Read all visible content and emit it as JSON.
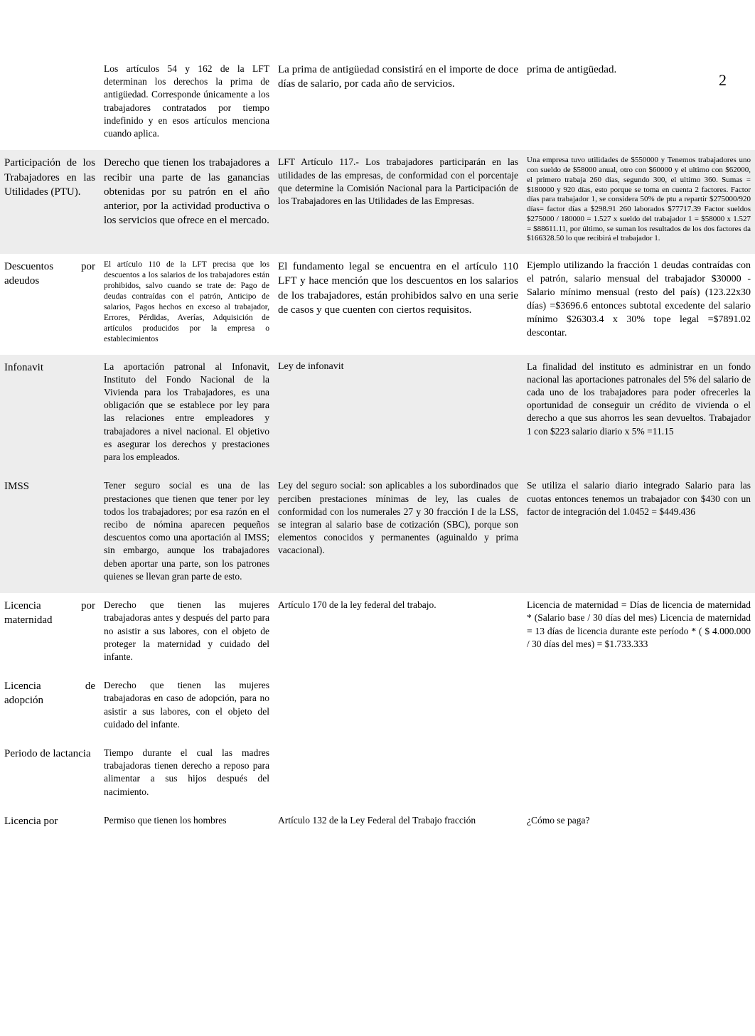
{
  "page_number": "2",
  "rows": {
    "top": {
      "c0": "",
      "c1": "Los artículos 54 y 162 de la LFT determinan los derechos la prima de antigüedad. Corresponde únicamente a los trabajadores contratados por tiempo indefinido y en esos artículos menciona cuando aplica.",
      "c2": "La prima de antigüedad consistirá en el importe de doce días de salario, por cada año de servicios.",
      "c3": "prima de antigüedad."
    },
    "participacion": {
      "c0": "Participación de los Trabajadores en las Utilidades (PTU).",
      "c1": "Derecho que tienen los trabajadores a recibir una parte de las ganancias obtenidas por su patrón en el año anterior, por la actividad productiva o los servicios que ofrece en el mercado.",
      "c2": "LFT Artículo 117.- Los trabajadores participarán en las utilidades de las empresas, de conformidad con el porcentaje que determine la Comisión Nacional para la Participación de los Trabajadores en las Utilidades de las Empresas.",
      "c3": "Una empresa tuvo utilidades de $550000 y Tenemos trabajadores uno con sueldo de $58000 anual, otro con $60000 y el ultimo con $62000, el primero trabaja 260 días, segundo 300, el ultimo 360. Sumas = $180000 y 920 días, esto porque se toma en cuenta 2 factores.\nFactor días para trabajador 1, se considera 50% de ptu a repartir $275000/920 días= factor días a $298.91 260 laborados $77717.39\nFactor sueldos $275000 / 180000 = 1.527 x sueldo del trabajador 1 = $58000 x 1.527 = $88611.11, por último, se suman los resultados de los dos factores da $166328.50 lo que recibirá el trabajador 1."
    },
    "descuentos": {
      "c0": "Descuentos por adeudos",
      "c1": "El artículo 110 de la LFT precisa que los descuentos a los salarios de los trabajadores están prohibidos, salvo cuando se trate de:\nPago de deudas contraídas con el patrón, Anticipo de salarios, Pagos hechos en exceso al trabajador, Errores, Pérdidas, Averías, Adquisición de artículos producidos por la empresa o establecimientos",
      "c2": "El fundamento legal se encuentra en el artículo 110 LFT y hace mención que los descuentos en los salarios de los trabajadores, están prohibidos salvo en una serie de casos y que cuenten con ciertos requisitos.",
      "c3": "Ejemplo utilizando la fracción 1 deudas contraídas con el patrón, salario mensual del trabajador $30000 - Salario mínimo mensual (resto del país) (123.22x30 días) =$3696.6 entonces subtotal excedente del salario mínimo $26303.4 x 30% tope legal =$7891.02 descontar."
    },
    "infonavit": {
      "c0": "Infonavit",
      "c1": "La aportación patronal al Infonavit, Instituto del Fondo Nacional de la Vivienda para los Trabajadores, es una obligación que se establece por ley para las relaciones entre empleadores y trabajadores a nivel nacional. El objetivo es asegurar los derechos y prestaciones para los empleados.",
      "c2": "Ley de infonavit",
      "c3": "La finalidad del instituto es administrar en un fondo nacional las aportaciones patronales del 5% del salario de cada uno de los trabajadores para poder ofrecerles la oportunidad de conseguir un crédito de vivienda o el derecho a que sus ahorros les sean devueltos.\nTrabajador 1 con $223 salario diario x 5% =11.15"
    },
    "imss": {
      "c0": "IMSS",
      "c1": "Tener seguro social es una de las prestaciones que tienen que tener por ley todos los trabajadores; por esa razón en el recibo de nómina aparecen pequeños descuentos como una aportación al IMSS; sin embargo, aunque los trabajadores deben aportar una parte, son los patrones quienes se llevan gran parte de esto.",
      "c2": "Ley del seguro social:\nson aplicables a los subordinados que perciben prestaciones mínimas de ley, las cuales de conformidad con los numerales 27 y 30 fracción I de la LSS, se integran al salario base de cotización (SBC), porque son elementos conocidos y permanentes (aguinaldo y prima vacacional).",
      "c3": "Se utiliza el salario diario integrado\nSalario para las cuotas entonces tenemos un trabajador con $430 con un factor de integración del 1.0452 = $449.436"
    },
    "licmat": {
      "c0": "Licencia por maternidad",
      "c1": "Derecho que tienen las mujeres trabajadoras antes y después del parto para no asistir a sus labores, con el objeto de proteger la maternidad y cuidado del infante.",
      "c2": "Artículo 170 de la ley federal del trabajo.",
      "c3": "Licencia de maternidad = Días de licencia de maternidad * (Salario base / 30 días del mes) Licencia de maternidad = 13 días de licencia durante este período * ( $ 4.000.000 / 30 días del mes) = $1.733.333"
    },
    "licadop": {
      "c0": "Licencia de adopción",
      "c1": "Derecho que tienen las mujeres trabajadoras en caso de adopción, para no asistir a sus labores, con el objeto del cuidado del infante.",
      "c2": "",
      "c3": ""
    },
    "lact": {
      "c0": "Periodo de lactancia",
      "c1": "Tiempo durante el cual las madres trabajadoras tienen derecho a reposo para alimentar a sus hijos después del nacimiento.",
      "c2": "",
      "c3": ""
    },
    "licpor": {
      "c0": "Licencia por",
      "c1": "Permiso que tienen los hombres",
      "c2": "Artículo 132 de la Ley Federal del Trabajo fracción",
      "c3": "¿Cómo se paga?"
    }
  }
}
